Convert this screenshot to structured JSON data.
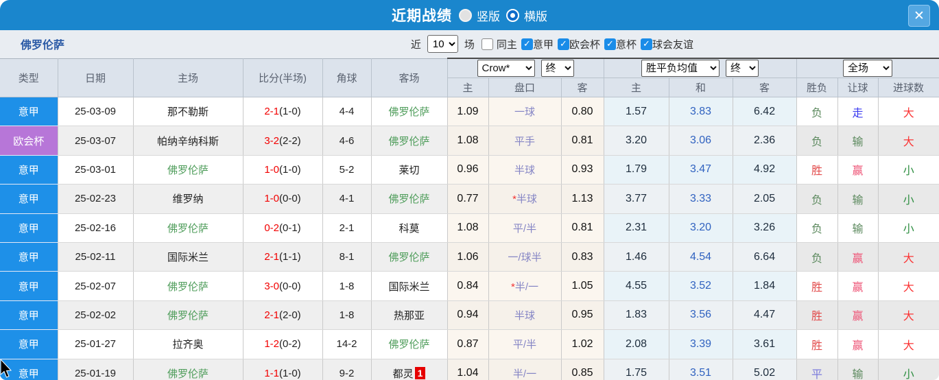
{
  "icons": {
    "close": "✕",
    "check": "✓"
  },
  "titlebar": {
    "title": "近期战绩",
    "view_options": [
      {
        "label": "竖版",
        "selected": false
      },
      {
        "label": "横版",
        "selected": true
      }
    ]
  },
  "filterbar": {
    "team": "佛罗伦萨",
    "recent_label": "近",
    "recent_value": "10",
    "matches_label": "场",
    "filters": [
      {
        "label": "同主",
        "checked": false
      },
      {
        "label": "意甲",
        "checked": true
      },
      {
        "label": "欧会杯",
        "checked": true
      },
      {
        "label": "意杯",
        "checked": true
      },
      {
        "label": "球会友谊",
        "checked": true
      }
    ]
  },
  "table": {
    "headers": {
      "type": "类型",
      "date": "日期",
      "home": "主场",
      "score": "比分(半场)",
      "corner": "角球",
      "away": "客场",
      "odds_home": "主",
      "handicap": "盘口",
      "odds_away": "客",
      "avg_home": "主",
      "avg_draw": "和",
      "avg_away": "客",
      "result": "胜负",
      "handicap_result": "让球",
      "goals": "进球数",
      "company_select": "Crow*",
      "company_final_select": "终",
      "avg_select": "胜平负均值",
      "avg_final_select": "终",
      "period_select": "全场"
    },
    "league_colors": {
      "意甲": "#1e90e8",
      "欧会杯": "#b776d8"
    },
    "result_colors": {
      "胜": "#e24b4b",
      "负": "#5d8a5f",
      "平": "#7b7bdc",
      "赢": "#ee5577",
      "输": "#5d8a5f",
      "走": "#3b3bf0",
      "大": "#fb3434",
      "小": "#2f8f42"
    },
    "self_team_color": "#4f9d5b",
    "rows": [
      {
        "type": "意甲",
        "date": "25-03-09",
        "home": "那不勒斯",
        "score": "2-1",
        "half": "(1-0)",
        "corner": "4-4",
        "away": "佛罗伦萨",
        "h": "1.09",
        "star": false,
        "handicap": "一球",
        "a": "0.80",
        "wh": "1.57",
        "wd": "3.83",
        "wa": "6.42",
        "result": "负",
        "hr": "走",
        "goals": "大"
      },
      {
        "type": "欧会杯",
        "date": "25-03-07",
        "home": "帕纳辛纳科斯",
        "score": "3-2",
        "half": "(2-2)",
        "corner": "4-6",
        "away": "佛罗伦萨",
        "h": "1.08",
        "star": false,
        "handicap": "平手",
        "a": "0.81",
        "wh": "3.20",
        "wd": "3.06",
        "wa": "2.36",
        "result": "负",
        "hr": "输",
        "goals": "大"
      },
      {
        "type": "意甲",
        "date": "25-03-01",
        "home": "佛罗伦萨",
        "score": "1-0",
        "half": "(1-0)",
        "corner": "5-2",
        "away": "莱切",
        "h": "0.96",
        "star": false,
        "handicap": "半球",
        "a": "0.93",
        "wh": "1.79",
        "wd": "3.47",
        "wa": "4.92",
        "result": "胜",
        "hr": "赢",
        "goals": "小"
      },
      {
        "type": "意甲",
        "date": "25-02-23",
        "home": "维罗纳",
        "score": "1-0",
        "half": "(0-0)",
        "corner": "4-1",
        "away": "佛罗伦萨",
        "h": "0.77",
        "star": true,
        "handicap": "半球",
        "a": "1.13",
        "wh": "3.77",
        "wd": "3.33",
        "wa": "2.05",
        "result": "负",
        "hr": "输",
        "goals": "小"
      },
      {
        "type": "意甲",
        "date": "25-02-16",
        "home": "佛罗伦萨",
        "score": "0-2",
        "half": "(0-1)",
        "corner": "2-1",
        "away": "科莫",
        "h": "1.08",
        "star": false,
        "handicap": "平/半",
        "a": "0.81",
        "wh": "2.31",
        "wd": "3.20",
        "wa": "3.26",
        "result": "负",
        "hr": "输",
        "goals": "小"
      },
      {
        "type": "意甲",
        "date": "25-02-11",
        "home": "国际米兰",
        "score": "2-1",
        "half": "(1-1)",
        "corner": "8-1",
        "away": "佛罗伦萨",
        "h": "1.06",
        "star": false,
        "handicap": "一/球半",
        "a": "0.83",
        "wh": "1.46",
        "wd": "4.54",
        "wa": "6.64",
        "result": "负",
        "hr": "赢",
        "goals": "大"
      },
      {
        "type": "意甲",
        "date": "25-02-07",
        "home": "佛罗伦萨",
        "score": "3-0",
        "half": "(0-0)",
        "corner": "1-8",
        "away": "国际米兰",
        "h": "0.84",
        "star": true,
        "handicap": "半/一",
        "a": "1.05",
        "wh": "4.55",
        "wd": "3.52",
        "wa": "1.84",
        "result": "胜",
        "hr": "赢",
        "goals": "大"
      },
      {
        "type": "意甲",
        "date": "25-02-02",
        "home": "佛罗伦萨",
        "score": "2-1",
        "half": "(2-0)",
        "corner": "1-8",
        "away": "热那亚",
        "h": "0.94",
        "star": false,
        "handicap": "半球",
        "a": "0.95",
        "wh": "1.83",
        "wd": "3.56",
        "wa": "4.47",
        "result": "胜",
        "hr": "赢",
        "goals": "大"
      },
      {
        "type": "意甲",
        "date": "25-01-27",
        "home": "拉齐奥",
        "score": "1-2",
        "half": "(0-2)",
        "corner": "14-2",
        "away": "佛罗伦萨",
        "h": "0.87",
        "star": false,
        "handicap": "平/半",
        "a": "1.02",
        "wh": "2.08",
        "wd": "3.39",
        "wa": "3.61",
        "result": "胜",
        "hr": "赢",
        "goals": "大"
      },
      {
        "type": "意甲",
        "date": "25-01-19",
        "home": "佛罗伦萨",
        "score": "1-1",
        "half": "(1-0)",
        "corner": "9-2",
        "away": "都灵",
        "away_badge": "1",
        "h": "1.04",
        "star": false,
        "handicap": "半/一",
        "a": "0.85",
        "wh": "1.75",
        "wd": "3.51",
        "wa": "5.02",
        "result": "平",
        "hr": "输",
        "goals": "小"
      }
    ]
  }
}
